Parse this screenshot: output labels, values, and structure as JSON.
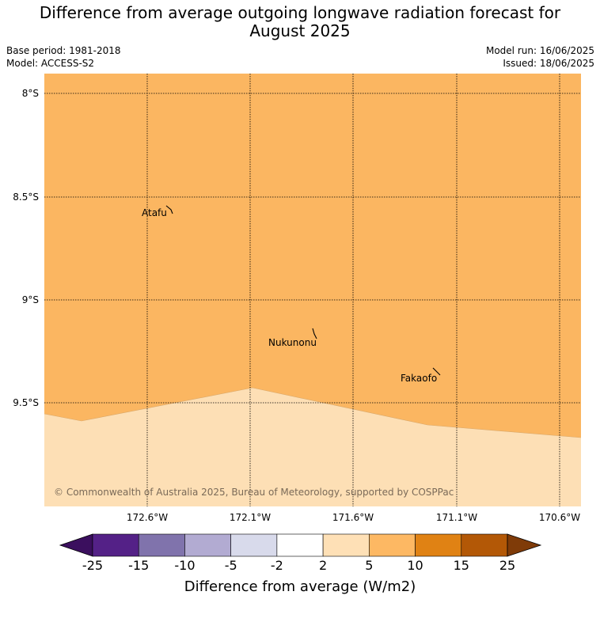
{
  "title_line1": "Difference from average outgoing longwave radiation forecast for",
  "title_line2": "August 2025",
  "meta": {
    "base_period": "Base period: 1981-2018",
    "model": "Model: ACCESS-S2",
    "model_run": "Model run: 16/06/2025",
    "issued": "Issued: 18/06/2025"
  },
  "map": {
    "lat_labels": [
      "8°S",
      "8.5°S",
      "9°S",
      "9.5°S"
    ],
    "lon_labels": [
      "172.6°W",
      "172.1°W",
      "171.6°W",
      "171.1°W",
      "170.6°W"
    ],
    "places": [
      "Atafu",
      "Nukunonu",
      "Fakaofo"
    ],
    "copyright": "© Commonwealth of Australia 2025, Bureau of Meteorology, supported by COSPPac",
    "region_colors": {
      "upper": "#fbb661",
      "lower": "#fddfb5"
    }
  },
  "colorbar": {
    "title": "Difference from average (W/m2)",
    "ticks": [
      "-25",
      "-15",
      "-10",
      "-5",
      "-2",
      "2",
      "5",
      "10",
      "15",
      "25"
    ],
    "colors": [
      "#3b0f5e",
      "#542187",
      "#8073ac",
      "#b2abd2",
      "#d8daeb",
      "#ffffff",
      "#fee0b6",
      "#fdb863",
      "#e08214",
      "#b35806",
      "#7f3b08"
    ]
  }
}
